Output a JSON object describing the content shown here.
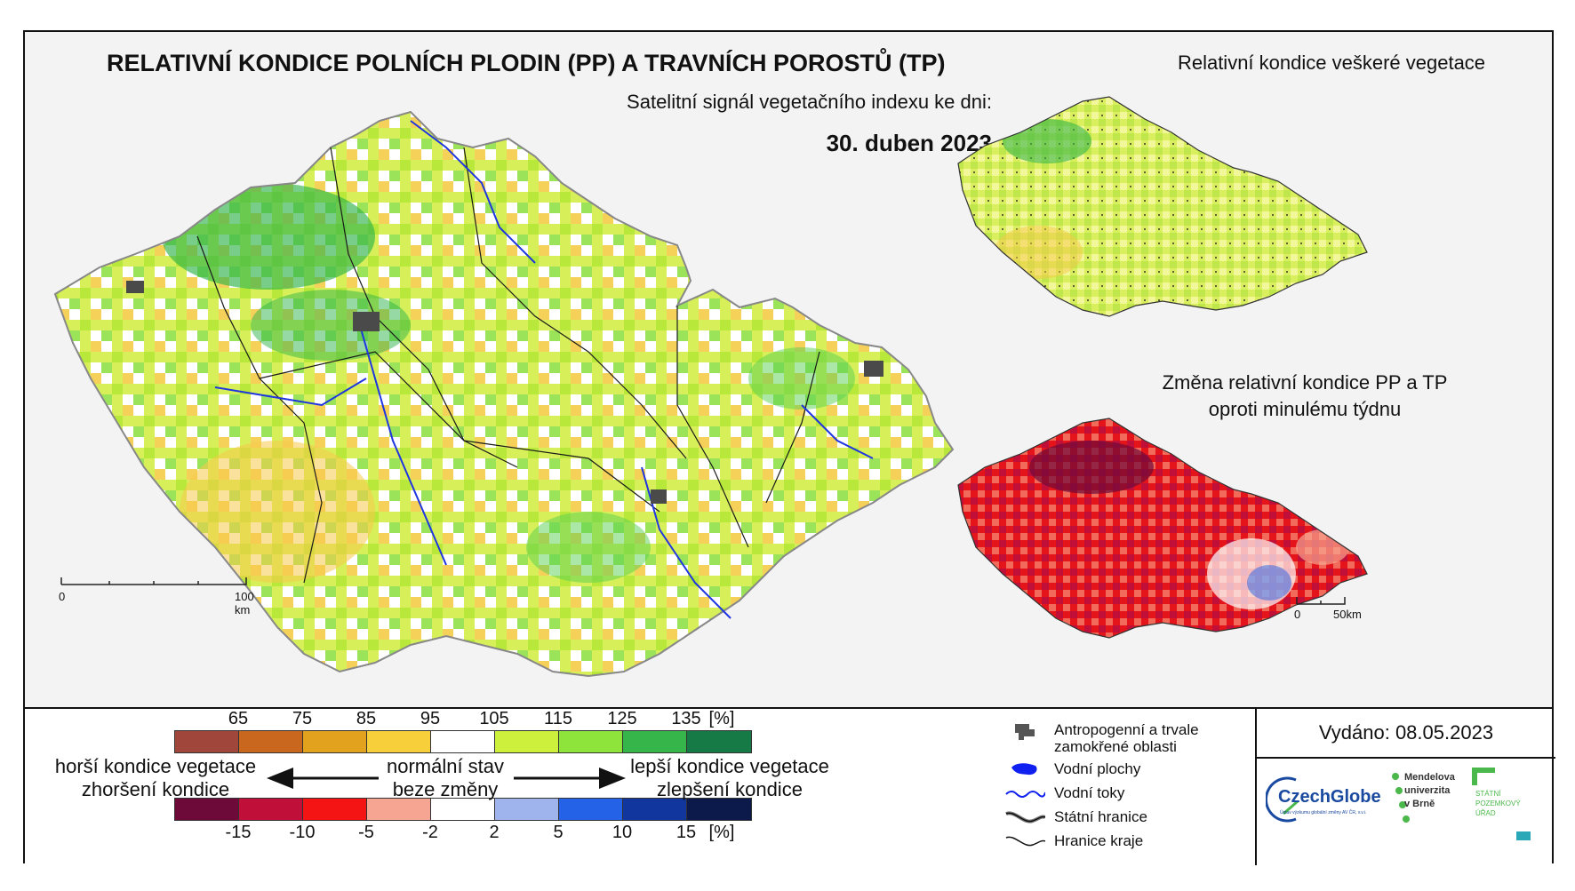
{
  "main": {
    "title": "RELATIVNÍ KONDICE POLNÍCH PLODIN (PP) A TRAVNÍCH POROSTŮ (TP)",
    "subtitle": "Satelitní signál vegetačního indexu ke dni:",
    "date": "30. duben 2023",
    "scale": {
      "start": "0",
      "end": "100 km"
    }
  },
  "side_top": {
    "title": "Relativní kondice veškeré vegetace"
  },
  "side_bottom": {
    "title_line1": "Změna relativní kondice PP a TP",
    "title_line2": "oproti minulému týdnu",
    "scale": {
      "start": "0",
      "end": "50km"
    }
  },
  "legend": {
    "top_ticks": [
      "65",
      "75",
      "85",
      "95",
      "105",
      "115",
      "125",
      "135",
      "[%]"
    ],
    "top_colors": [
      "#a0463a",
      "#c8671d",
      "#e3a21e",
      "#f7cf3a",
      "#ffffff",
      "#cdf03c",
      "#8ee43a",
      "#36b54a",
      "#167a47"
    ],
    "bottom_ticks": [
      "-15",
      "-10",
      "-5",
      "-2",
      "2",
      "5",
      "10",
      "15",
      "[%]"
    ],
    "bottom_colors": [
      "#6e0a3a",
      "#c0103a",
      "#f51414",
      "#f5a592",
      "#ffffff",
      "#9fb4ec",
      "#2463e8",
      "#11369e",
      "#0b1a4a"
    ],
    "worse_line1": "horší kondice vegetace",
    "worse_line2": "zhoršení kondice",
    "normal_line1": "normální stav",
    "normal_line2": "beze změny",
    "better_line1": "lepší kondice vegetace",
    "better_line2": "zlepšení kondice"
  },
  "map_legend": {
    "urban": "Antropogenní a trvale zamokřené oblasti",
    "water_bodies": "Vodní plochy",
    "rivers": "Vodní toky",
    "state_border": "Státní hranice",
    "region_border": "Hranice kraje"
  },
  "issued": "Vydáno: 08.05.2023",
  "logos": {
    "czechglobe": "CzechGlobe",
    "czechglobe_sub": "Ústav výzkumu globální změny AV ČR, v.v.i.",
    "mendelu": "Mendelova univerzita v Brně",
    "spu": "STÁTNÍ POZEMKOVÝ ÚŘAD"
  }
}
